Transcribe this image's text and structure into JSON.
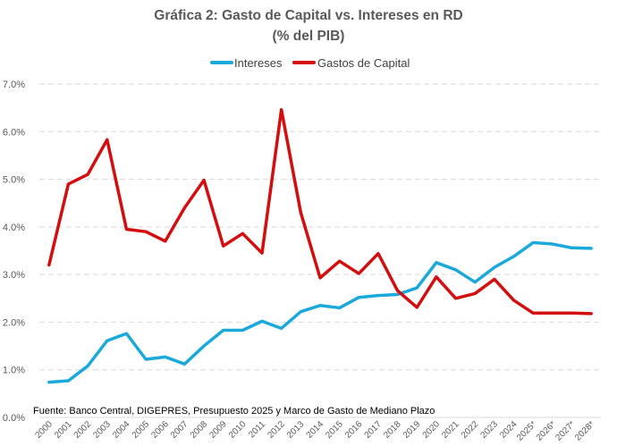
{
  "chart_data": {
    "type": "line",
    "title": "Gráfica 2: Gasto de Capital vs. Intereses en RD",
    "subtitle": "(% del PIB)",
    "xlabel": "",
    "ylabel": "",
    "ylim": [
      0,
      7
    ],
    "yticks": [
      "0.0%",
      "1.0%",
      "2.0%",
      "3.0%",
      "4.0%",
      "5.0%",
      "6.0%",
      "7.0%"
    ],
    "yticks_values": [
      0,
      1,
      2,
      3,
      4,
      5,
      6,
      7
    ],
    "grid": true,
    "legend_position": "top-center",
    "categories": [
      "2000",
      "2001",
      "2002",
      "2003",
      "2004",
      "2005",
      "2006",
      "2007",
      "2008",
      "2009",
      "2010",
      "2011",
      "2012",
      "2013",
      "2014",
      "2015",
      "2016",
      "2017",
      "2018",
      "2019",
      "2020",
      "2021",
      "2022",
      "2023",
      "2024",
      "2025*",
      "2026*",
      "2027*",
      "2028*"
    ],
    "series": [
      {
        "name": "Intereses",
        "color": "#1BA8DB",
        "values": [
          0.74,
          0.77,
          1.08,
          1.61,
          1.76,
          1.22,
          1.27,
          1.12,
          1.5,
          1.83,
          1.83,
          2.02,
          1.87,
          2.22,
          2.35,
          2.3,
          2.52,
          2.56,
          2.58,
          2.72,
          3.25,
          3.1,
          2.84,
          3.15,
          3.38,
          3.67,
          3.64,
          3.56,
          3.55
        ]
      },
      {
        "name": "Gastos de Capital",
        "color": "#D40E0E",
        "values": [
          3.2,
          4.9,
          5.1,
          5.83,
          3.95,
          3.9,
          3.7,
          4.4,
          4.98,
          3.6,
          3.86,
          3.45,
          6.46,
          4.3,
          2.93,
          3.28,
          3.02,
          3.44,
          2.66,
          2.31,
          2.95,
          2.5,
          2.6,
          2.9,
          2.46,
          2.19,
          2.19,
          2.19,
          2.18
        ]
      }
    ],
    "source_note": "Fuente: Banco Central, DIGEPRES, Presupuesto 2025 y Marco de Gasto de Mediano Plazo"
  }
}
